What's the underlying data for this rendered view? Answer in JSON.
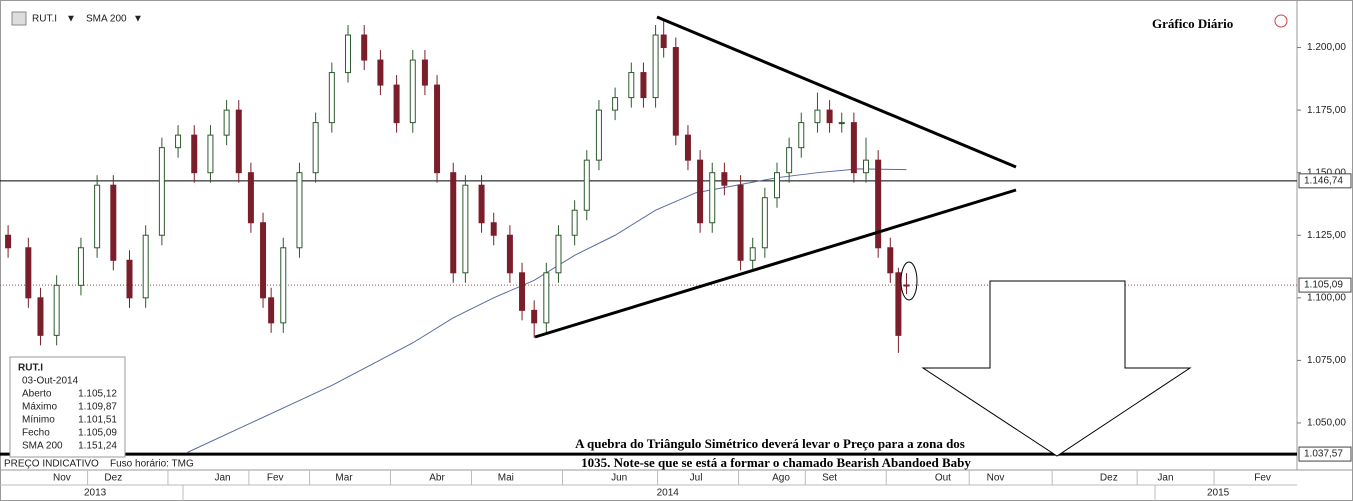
{
  "chart_data": {
    "type": "candlestick",
    "title": "Gráfico Diário",
    "symbol": "RUT.I",
    "indicator": "SMA 200",
    "annotation": [
      "A quebra do Triângulo Simétrico deverá levar o Preço para a zona dos",
      "1035. Note-se que se está a formar o chamado Bearish Abandoed Baby"
    ],
    "footer": [
      "PREÇO INDICATIVO",
      "Fuso horário: TMG"
    ],
    "info_panel": {
      "title": "RUT.I",
      "date": "03-Out-2014",
      "rows": [
        [
          "Aberto",
          "1.105,12"
        ],
        [
          "Máximo",
          "1.109,87"
        ],
        [
          "Mínimo",
          "1.101,51"
        ],
        [
          "Fecho",
          "1.105,09"
        ],
        [
          "SMA 200",
          "1.151,24"
        ]
      ]
    },
    "x": [
      0,
      5,
      8,
      12,
      18,
      22,
      26,
      30,
      34,
      38,
      42,
      46,
      50,
      54,
      57,
      60,
      63,
      65,
      68,
      72,
      76,
      80,
      84,
      88,
      92,
      96,
      100,
      103,
      106,
      110,
      113,
      117,
      120,
      124,
      127,
      130,
      133,
      136,
      140,
      143,
      146,
      150,
      154,
      157,
      160,
      162,
      165,
      168,
      171,
      174,
      177,
      181,
      184,
      187,
      190,
      193,
      196,
      200,
      203,
      206,
      209,
      212,
      215,
      218,
      220,
      222
    ],
    "open": [
      1125,
      1120,
      1100,
      1085,
      1105,
      1120,
      1145,
      1115,
      1100,
      1125,
      1160,
      1165,
      1150,
      1165,
      1175,
      1150,
      1130,
      1100,
      1090,
      1120,
      1150,
      1170,
      1190,
      1205,
      1195,
      1185,
      1170,
      1195,
      1185,
      1150,
      1110,
      1145,
      1130,
      1125,
      1110,
      1095,
      1090,
      1110,
      1125,
      1135,
      1155,
      1175,
      1180,
      1190,
      1180,
      1205,
      1200,
      1165,
      1155,
      1130,
      1150,
      1145,
      1115,
      1120,
      1140,
      1150,
      1160,
      1170,
      1175,
      1170,
      1170,
      1150,
      1155,
      1120,
      1110,
      1105.12
    ],
    "high": [
      1129,
      1124,
      1104,
      1109,
      1124,
      1149,
      1149,
      1119,
      1129,
      1164,
      1169,
      1169,
      1169,
      1179,
      1179,
      1154,
      1134,
      1104,
      1124,
      1154,
      1174,
      1194,
      1209,
      1209,
      1199,
      1189,
      1199,
      1199,
      1189,
      1154,
      1149,
      1149,
      1134,
      1129,
      1114,
      1099,
      1114,
      1129,
      1139,
      1159,
      1179,
      1184,
      1194,
      1194,
      1209,
      1211,
      1204,
      1169,
      1159,
      1154,
      1154,
      1149,
      1124,
      1144,
      1154,
      1164,
      1174,
      1182,
      1179,
      1174,
      1174,
      1164,
      1159,
      1124,
      1112,
      1109.87
    ],
    "low": [
      1116,
      1096,
      1081,
      1081,
      1101,
      1116,
      1111,
      1096,
      1096,
      1121,
      1156,
      1146,
      1146,
      1161,
      1146,
      1126,
      1096,
      1086,
      1086,
      1116,
      1146,
      1166,
      1186,
      1191,
      1181,
      1166,
      1166,
      1181,
      1146,
      1106,
      1106,
      1126,
      1121,
      1106,
      1091,
      1084,
      1086,
      1106,
      1121,
      1131,
      1151,
      1171,
      1176,
      1176,
      1176,
      1196,
      1161,
      1151,
      1126,
      1126,
      1141,
      1111,
      1111,
      1116,
      1136,
      1146,
      1156,
      1166,
      1166,
      1166,
      1146,
      1146,
      1116,
      1106,
      1078,
      1101.51
    ],
    "close": [
      1120,
      1100,
      1085,
      1105,
      1120,
      1145,
      1115,
      1100,
      1125,
      1160,
      1165,
      1150,
      1165,
      1175,
      1150,
      1130,
      1100,
      1090,
      1120,
      1150,
      1170,
      1190,
      1205,
      1195,
      1185,
      1170,
      1195,
      1185,
      1150,
      1110,
      1145,
      1130,
      1125,
      1110,
      1095,
      1090,
      1110,
      1125,
      1135,
      1155,
      1175,
      1180,
      1190,
      1180,
      1205,
      1200,
      1165,
      1155,
      1130,
      1150,
      1145,
      1115,
      1120,
      1140,
      1150,
      1160,
      1170,
      1175,
      1170,
      1170,
      1150,
      1155,
      1120,
      1110,
      1085,
      1105.09
    ],
    "up_color": "#ffffff",
    "up_edge": "#2d5a2d",
    "down_color": "#7b1e2b",
    "sma": {
      "name": "SMA 200",
      "color": "#5a6aa0",
      "x": [
        44,
        60,
        80,
        100,
        110,
        120,
        130,
        140,
        150,
        160,
        170,
        180,
        190,
        200,
        210,
        222
      ],
      "values": [
        1038,
        1050,
        1065,
        1082,
        1092,
        1100,
        1107,
        1117,
        1125,
        1135,
        1142,
        1145,
        1148,
        1150,
        1151.5,
        1151.24
      ]
    },
    "levels": [
      {
        "value": 1146.74,
        "label": "1.146,74",
        "color": "#000000",
        "style": "solid"
      },
      {
        "value": 1105.09,
        "label": "1.105,09",
        "color": "#b04040",
        "style": "dotted"
      },
      {
        "value": 1037.57,
        "label": "1.037,57",
        "color": "#000000",
        "style": "thick"
      }
    ],
    "xlim": [
      -2,
      318.5
    ],
    "ylim": [
      1036,
      1217
    ],
    "yticks": [
      {
        "value": 1050,
        "label": "1.050,00"
      },
      {
        "value": 1075,
        "label": "1.075,00"
      },
      {
        "value": 1100,
        "label": "1.100,00"
      },
      {
        "value": 1125,
        "label": "1.125,00"
      },
      {
        "value": 1150,
        "label": "1.150,00"
      },
      {
        "value": 1175,
        "label": "1.175,00"
      },
      {
        "value": 1200,
        "label": "1.200,00"
      }
    ],
    "xticks": [
      {
        "value": 13.3,
        "label": "Nov"
      },
      {
        "value": 26,
        "label": "Dez"
      },
      {
        "value": 53,
        "label": "Jan"
      },
      {
        "value": 66,
        "label": "Fev"
      },
      {
        "value": 83,
        "label": "Mar"
      },
      {
        "value": 106,
        "label": "Abr"
      },
      {
        "value": 123,
        "label": "Mai"
      },
      {
        "value": 151,
        "label": "Jun"
      },
      {
        "value": 170,
        "label": "Jul"
      },
      {
        "value": 191,
        "label": "Ago"
      },
      {
        "value": 203,
        "label": "Set"
      },
      {
        "value": 231,
        "label": "Out"
      },
      {
        "value": 244,
        "label": "Nov"
      },
      {
        "value": 272,
        "label": "Dez"
      },
      {
        "value": 286,
        "label": "Jan"
      },
      {
        "value": 310,
        "label": "Fev"
      }
    ],
    "years": [
      {
        "value": 21.5,
        "label": "2013"
      },
      {
        "value": 163,
        "label": "2014"
      },
      {
        "value": 299,
        "label": "2015"
      }
    ]
  }
}
